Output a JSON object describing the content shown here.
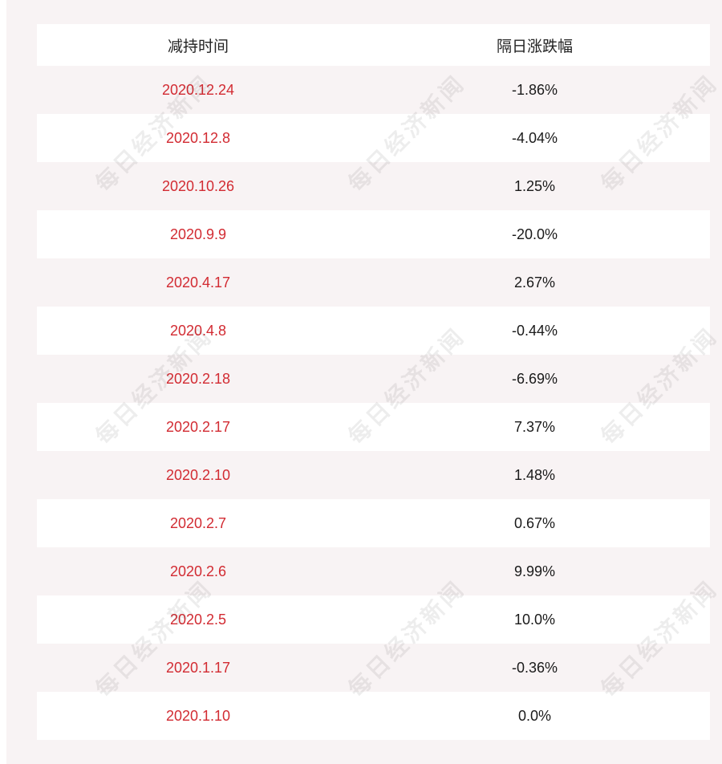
{
  "table": {
    "headers": [
      "减持时间",
      "隔日涨跌幅"
    ],
    "rows": [
      {
        "date": "2020.12.24",
        "change": "-1.86%"
      },
      {
        "date": "2020.12.8",
        "change": "-4.04%"
      },
      {
        "date": "2020.10.26",
        "change": "1.25%"
      },
      {
        "date": "2020.9.9",
        "change": "-20.0%"
      },
      {
        "date": "2020.4.17",
        "change": "2.67%"
      },
      {
        "date": "2020.4.8",
        "change": "-0.44%"
      },
      {
        "date": "2020.2.18",
        "change": "-6.69%"
      },
      {
        "date": "2020.2.17",
        "change": "7.37%"
      },
      {
        "date": "2020.2.10",
        "change": "1.48%"
      },
      {
        "date": "2020.2.7",
        "change": "0.67%"
      },
      {
        "date": "2020.2.6",
        "change": "9.99%"
      },
      {
        "date": "2020.2.5",
        "change": "10.0%"
      },
      {
        "date": "2020.1.17",
        "change": "-0.36%"
      },
      {
        "date": "2020.1.10",
        "change": "0.0%"
      }
    ]
  },
  "watermark": {
    "text": "每日经济新闻"
  },
  "colors": {
    "date_text": "#d22b32",
    "change_text": "#1a1a1a",
    "stripe": "#f8f3f4"
  }
}
